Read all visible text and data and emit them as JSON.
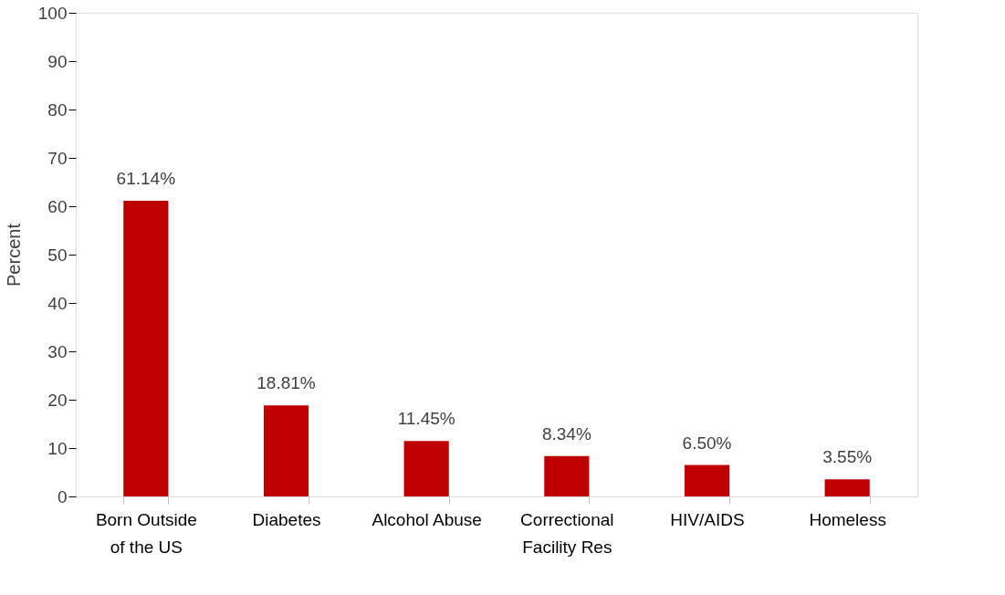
{
  "chart_data": {
    "type": "bar",
    "ylabel": "Percent",
    "categories": [
      "Born Outside of the US",
      "Diabetes",
      "Alcohol Abuse",
      "Correctional Facility Res",
      "HIV/AIDS",
      "Homeless"
    ],
    "values": [
      61.14,
      18.81,
      11.45,
      8.34,
      6.5,
      3.55
    ],
    "value_labels": [
      "61.14%",
      "18.81%",
      "11.45%",
      "8.34%",
      "6.50%",
      "3.55%"
    ],
    "color": "#c00000",
    "ylim": [
      0,
      100
    ],
    "yticks": [
      0,
      10,
      20,
      30,
      40,
      50,
      60,
      70,
      80,
      90,
      100
    ],
    "grid": false,
    "legend": false
  }
}
